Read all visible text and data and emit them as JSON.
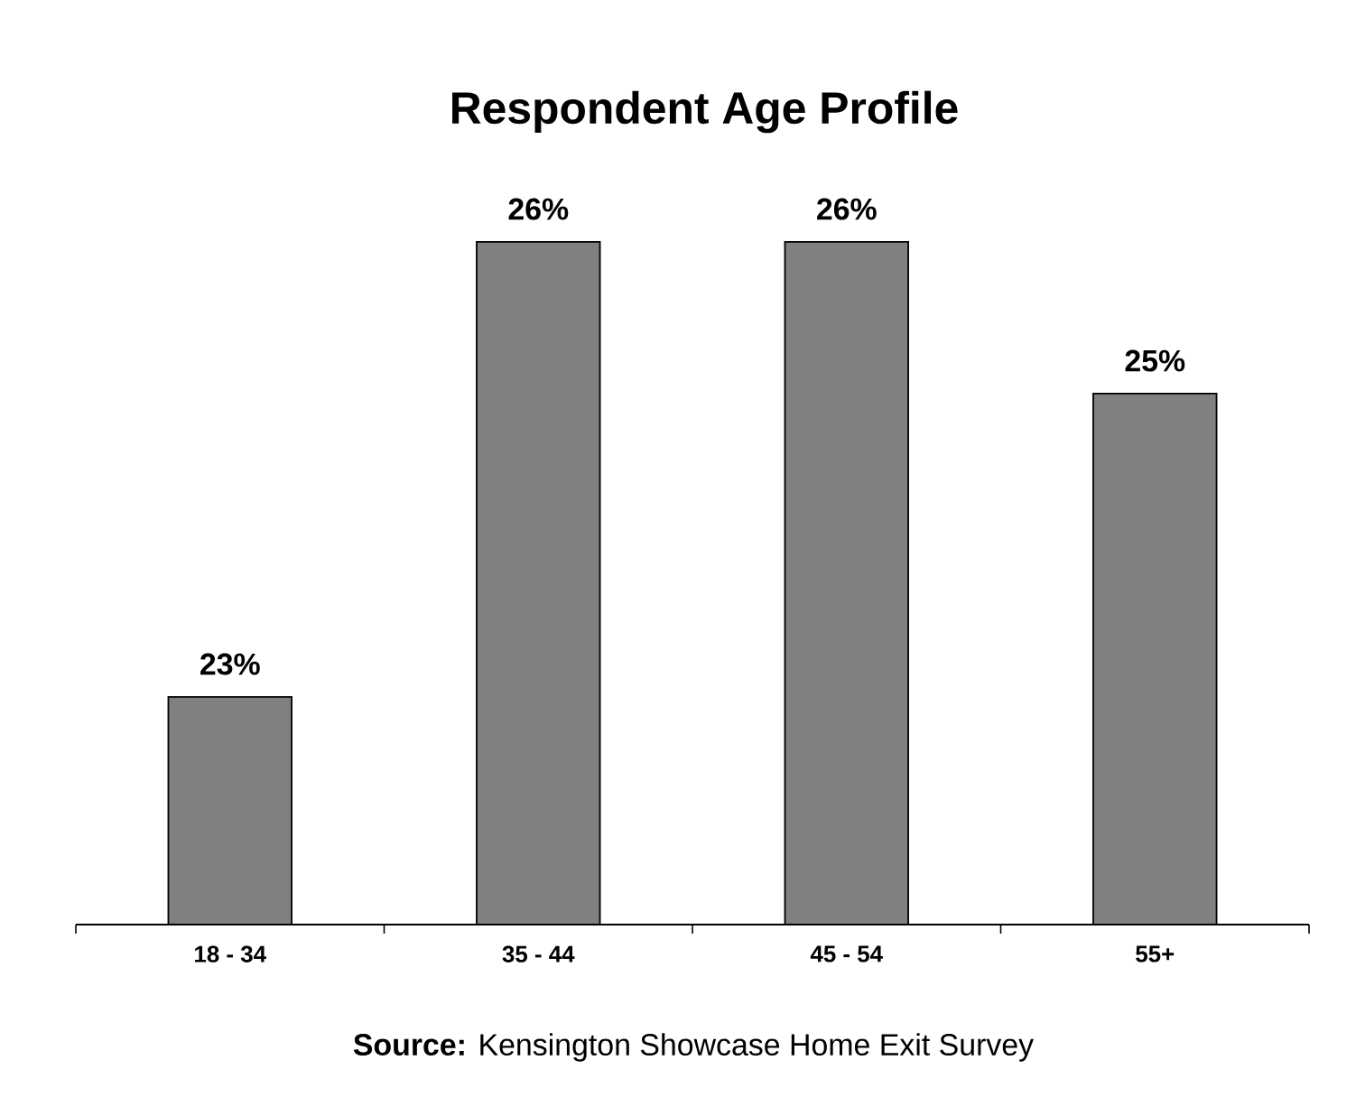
{
  "chart_data": {
    "type": "bar",
    "title": "Respondent Age Profile",
    "categories": [
      "18 - 34",
      "35 - 44",
      "45 - 54",
      "55+"
    ],
    "values": [
      23,
      26,
      26,
      25
    ],
    "value_labels": [
      "23%",
      "26%",
      "26%",
      "25%"
    ],
    "color": "#808080",
    "ylim": [
      21.5,
      26
    ],
    "annotations": [
      "**Source:** Kensington Showcase Home Exit Survey"
    ]
  }
}
